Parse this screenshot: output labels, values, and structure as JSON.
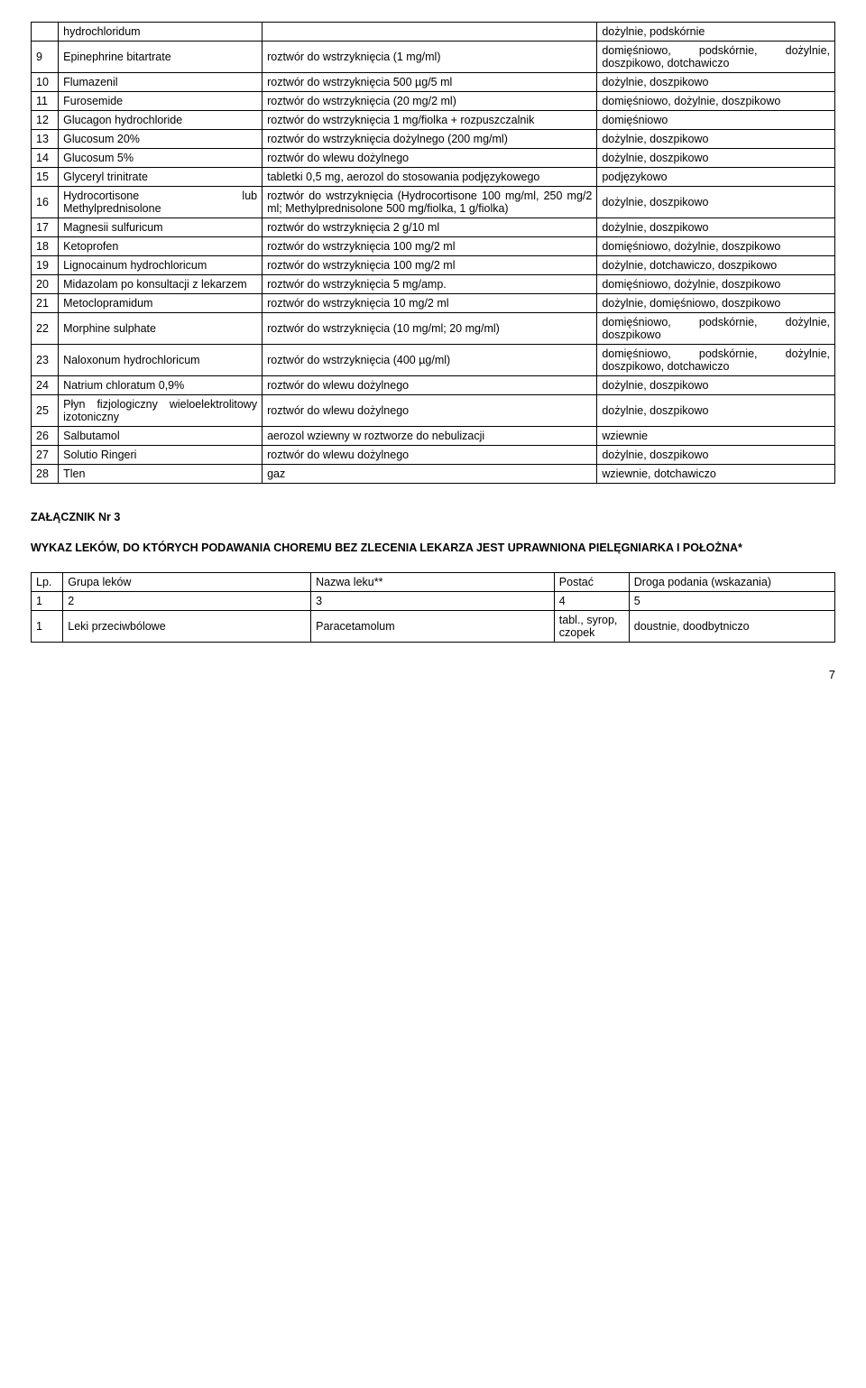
{
  "table1": {
    "rows": [
      {
        "n": "",
        "name": "hydrochloridum",
        "form": "",
        "route": "dożylnie, podskórnie"
      },
      {
        "n": "9",
        "name": "Epinephrine bitartrate",
        "form": "roztwór do wstrzyknięcia (1 mg/ml)",
        "route": "domięśniowo, podskórnie, dożylnie, doszpikowo, dotchawiczo"
      },
      {
        "n": "10",
        "name": "Flumazenil",
        "form": "roztwór do wstrzyknięcia 500 µg/5 ml",
        "route": "dożylnie, doszpikowo"
      },
      {
        "n": "11",
        "name": "Furosemide",
        "form": "roztwór do wstrzyknięcia (20 mg/2 ml)",
        "route": "domięśniowo, dożylnie, doszpikowo"
      },
      {
        "n": "12",
        "name": "Glucagon hydrochloride",
        "form": "roztwór do wstrzyknięcia 1 mg/fiolka + rozpuszczalnik",
        "route": "domięśniowo"
      },
      {
        "n": "13",
        "name": "Glucosum 20%",
        "form": "roztwór do wstrzyknięcia dożylnego (200 mg/ml)",
        "route": "dożylnie, doszpikowo"
      },
      {
        "n": "14",
        "name": "Glucosum 5%",
        "form": "roztwór do wlewu dożylnego",
        "route": "dożylnie, doszpikowo"
      },
      {
        "n": "15",
        "name": "Glyceryl trinitrate",
        "form": "tabletki 0,5 mg, aerozol do stosowania podjęzykowego",
        "route": "podjęzykowo"
      },
      {
        "n": "16",
        "name": "Hydrocortisone lub Methylprednisolone",
        "form": "roztwór do wstrzyknięcia (Hydrocortisone 100 mg/ml, 250 mg/2 ml; Methylprednisolone 500 mg/fiolka, 1 g/fiolka)",
        "route": "dożylnie, doszpikowo"
      },
      {
        "n": "17",
        "name": "Magnesii sulfuricum",
        "form": "roztwór do wstrzyknięcia 2 g/10 ml",
        "route": "dożylnie, doszpikowo"
      },
      {
        "n": "18",
        "name": "Ketoprofen",
        "form": "roztwór do wstrzyknięcia 100 mg/2 ml",
        "route": "domięśniowo, dożylnie, doszpikowo"
      },
      {
        "n": "19",
        "name": "Lignocainum hydrochloricum",
        "form": "roztwór do wstrzyknięcia 100 mg/2 ml",
        "route": "dożylnie, dotchawiczo, doszpikowo"
      },
      {
        "n": "20",
        "name": "Midazolam po konsultacji z lekarzem",
        "form": "roztwór do wstrzyknięcia 5 mg/amp.",
        "route": "domięśniowo, dożylnie, doszpikowo"
      },
      {
        "n": "21",
        "name": "Metoclopramidum",
        "form": "roztwór do wstrzyknięcia 10 mg/2 ml",
        "route": "dożylnie, domięśniowo, doszpikowo"
      },
      {
        "n": "22",
        "name": "Morphine sulphate",
        "form": "roztwór do wstrzyknięcia (10 mg/ml; 20 mg/ml)",
        "route": "domięśniowo, podskórnie,  dożylnie, doszpikowo"
      },
      {
        "n": "23",
        "name": "Naloxonum hydrochloricum",
        "form": "roztwór do wstrzyknięcia (400 µg/ml)",
        "route": "domięśniowo, podskórnie, dożylnie, doszpikowo, dotchawiczo"
      },
      {
        "n": "24",
        "name": "Natrium chloratum 0,9%",
        "form": "roztwór do wlewu dożylnego",
        "route": "dożylnie, doszpikowo"
      },
      {
        "n": "25",
        "name": "Płyn fizjologiczny wieloelektrolitowy izotoniczny",
        "form": "roztwór do wlewu dożylnego",
        "route": "dożylnie, doszpikowo"
      },
      {
        "n": "26",
        "name": "Salbutamol",
        "form": "aerozol wziewny w roztworze do nebulizacji",
        "route": "wziewnie"
      },
      {
        "n": "27",
        "name": "Solutio Ringeri",
        "form": "roztwór do wlewu dożylnego",
        "route": "dożylnie, doszpikowo"
      },
      {
        "n": "28",
        "name": "Tlen",
        "form": "gaz",
        "route": "wziewnie, dotchawiczo"
      }
    ]
  },
  "section": {
    "heading": "ZAŁĄCZNIK Nr 3",
    "sub": "WYKAZ LEKÓW, DO KTÓRYCH PODAWANIA CHOREMU BEZ ZLECENIA LEKARZA JEST UPRAWNIONA PIELĘGNIARKA I POŁOŻNA*"
  },
  "table2": {
    "header": {
      "c1": "Lp.",
      "c2": "Grupa leków",
      "c3": "Nazwa leku**",
      "c4": "Postać",
      "c5": "Droga podania (wskazania)"
    },
    "numrow": {
      "c1": "1",
      "c2": "2",
      "c3": "3",
      "c4": "4",
      "c5": "5"
    },
    "rows": [
      {
        "c1": "1",
        "c2": "Leki przeciwbólowe",
        "c3": "Paracetamolum",
        "c4": "tabl., syrop, czopek",
        "c5": "doustnie, doodbytniczo"
      }
    ]
  },
  "page_number": "7"
}
